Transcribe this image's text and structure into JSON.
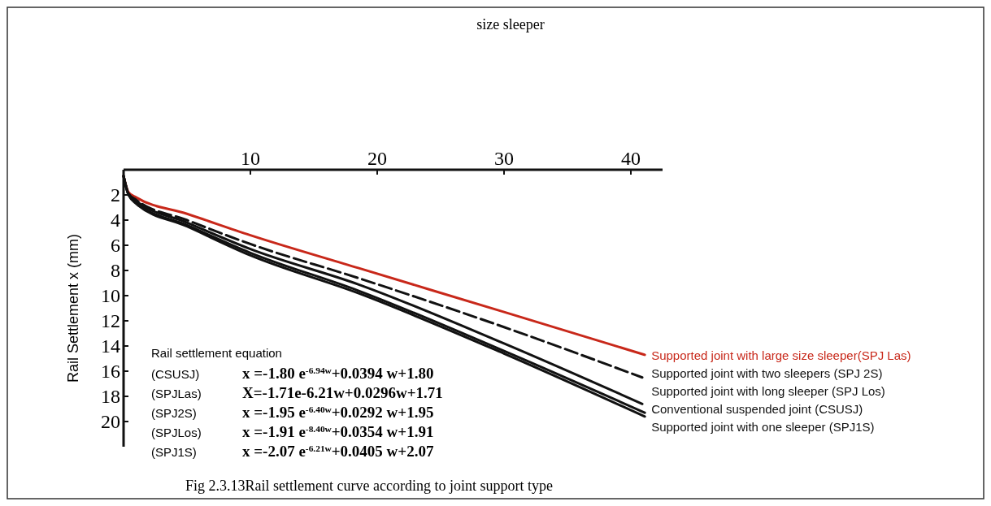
{
  "chart_data": {
    "type": "line",
    "title": "size sleeper",
    "ylabel": "Rail Settlement x (mm)",
    "xlim": [
      0,
      42.5
    ],
    "xticks": [
      10,
      20,
      30,
      40
    ],
    "ylim": [
      22,
      0
    ],
    "yticks": [
      2,
      4,
      6,
      8,
      10,
      12,
      14,
      16,
      18,
      20
    ],
    "grid": false,
    "legend": false,
    "marker": "none",
    "series": [
      {
        "name": "Supported joint with large size sleeper(SPJ Las)",
        "color": "#c8281a",
        "x": [
          0,
          0.4,
          1,
          5,
          10,
          18.5,
          30,
          41.1
        ],
        "values": [
          0.5,
          1.8,
          2.2,
          3.5,
          5.2,
          7.8,
          11.3,
          14.7
        ]
      },
      {
        "name": "Supported joint with two sleepers (SPJ 2S)",
        "color": "#111111",
        "line_style": "dashed",
        "x": [
          0,
          0.4,
          1,
          5,
          10,
          18.5,
          30,
          40.9
        ],
        "values": [
          0.5,
          1.9,
          2.4,
          4.0,
          5.9,
          8.6,
          12.5,
          16.5
        ]
      },
      {
        "name": "Supported joint with long sleeper (SPJ Los)",
        "color": "#111111",
        "x": [
          0,
          0.4,
          1,
          5,
          10,
          18.5,
          30,
          40.9
        ],
        "values": [
          0.5,
          2.0,
          2.5,
          4.2,
          6.3,
          9.1,
          13.8,
          18.6
        ]
      },
      {
        "name": "Conventional suspended joint (CSUSJ)",
        "color": "#111111",
        "x": [
          0,
          0.4,
          1,
          5,
          10,
          18.5,
          30,
          41.1
        ],
        "values": [
          0.5,
          2.0,
          2.6,
          4.4,
          6.6,
          9.6,
          14.4,
          19.3
        ]
      },
      {
        "name": "Supported joint with one sleeper (SPJ1S)",
        "color": "#111111",
        "x": [
          0,
          0.4,
          1,
          5,
          10,
          18.5,
          30,
          41.1
        ],
        "values": [
          0.5,
          2.0,
          2.7,
          4.5,
          6.8,
          9.8,
          14.6,
          19.6
        ]
      }
    ],
    "annotations": [
      "Rail settlement equation",
      "(CSUSJ)",
      "x =-1.80 e$^{-6.94w}$+0.0394 w+1.80",
      "(SPJLas)",
      "X=-1.71e-6.21w+0.0296w+1.71",
      "(SPJ2S)",
      "x =-1.95 e$^{-6.40w}$+0.0292 w+1.95",
      "(SPJLos)",
      "x =-1.91 e$^{-8.40w}$+0.0354 w+1.91",
      "(SPJ1S)",
      "x =-2.07 e$^{-6.21w}$+0.0405 w+2.07",
      "Fig 2.3.13Rail settlement curve according to joint support type"
    ]
  }
}
